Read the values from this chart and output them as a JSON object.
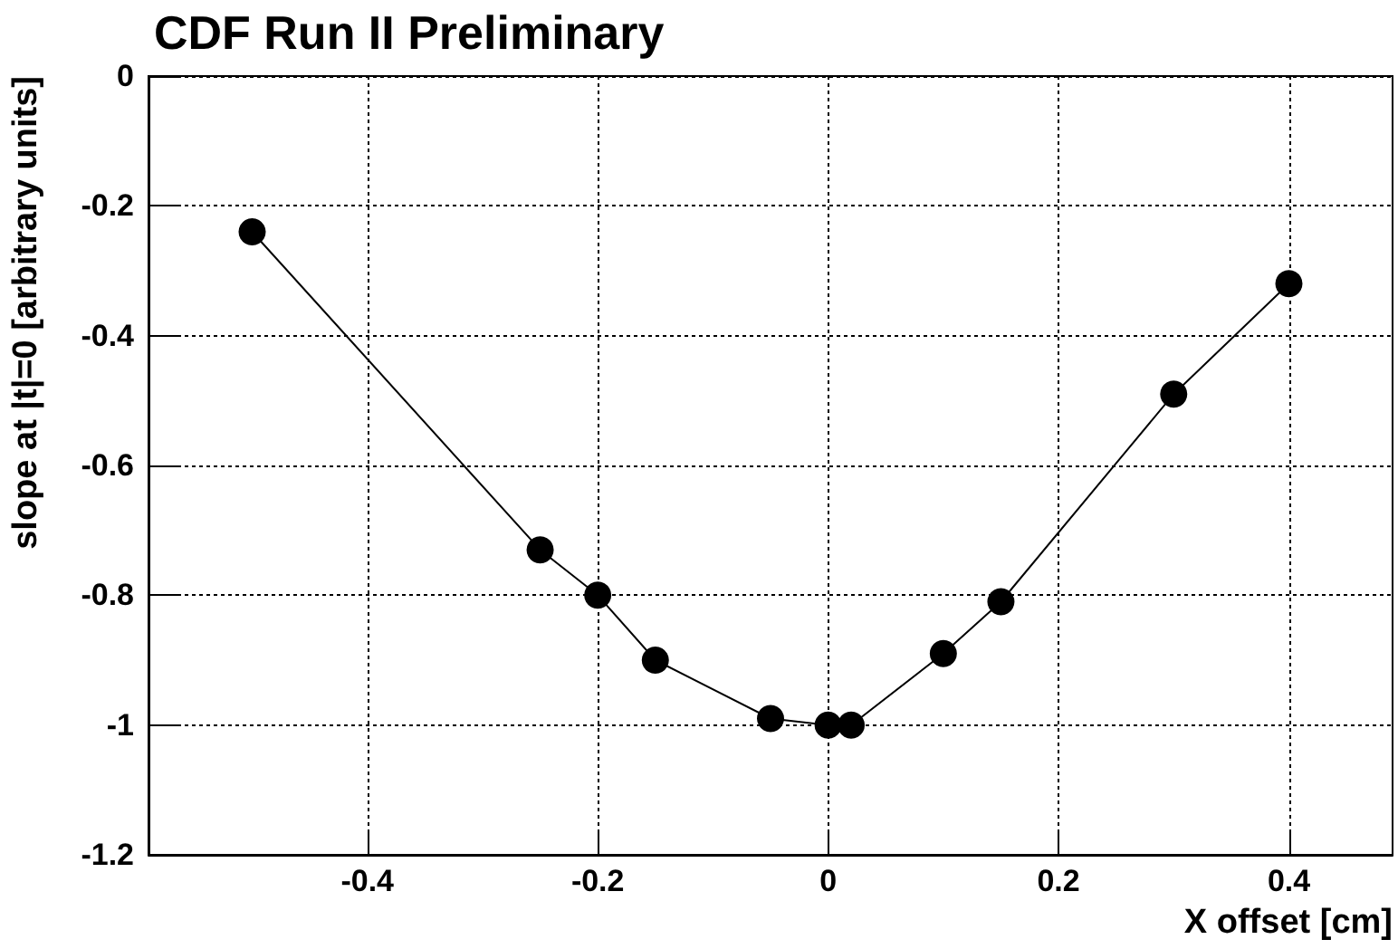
{
  "chart_data": {
    "type": "line",
    "title": "CDF Run II Preliminary",
    "xlabel": "X offset [cm]",
    "ylabel": "slope at |t|=0 [arbitrary units]",
    "x": [
      -0.5,
      -0.25,
      -0.2,
      -0.15,
      -0.05,
      0,
      0.02,
      0.1,
      0.15,
      0.3,
      0.4
    ],
    "series": [
      {
        "color": "#000000",
        "values": [
          -0.24,
          -0.73,
          -0.8,
          -0.9,
          -0.99,
          -1.0,
          -1.0,
          -0.89,
          -0.81,
          -0.49,
          -0.32
        ]
      }
    ],
    "xlim": [
      -0.59,
      0.49
    ],
    "xticks": [
      -0.4,
      -0.2,
      0,
      0.2,
      0.4
    ],
    "ylim": [
      -1.2,
      0
    ],
    "yticks": [
      -1.2,
      -1,
      -0.8,
      -0.6,
      -0.4,
      -0.2,
      0
    ],
    "grid": true,
    "marker": "circle",
    "line_style": "solid"
  }
}
